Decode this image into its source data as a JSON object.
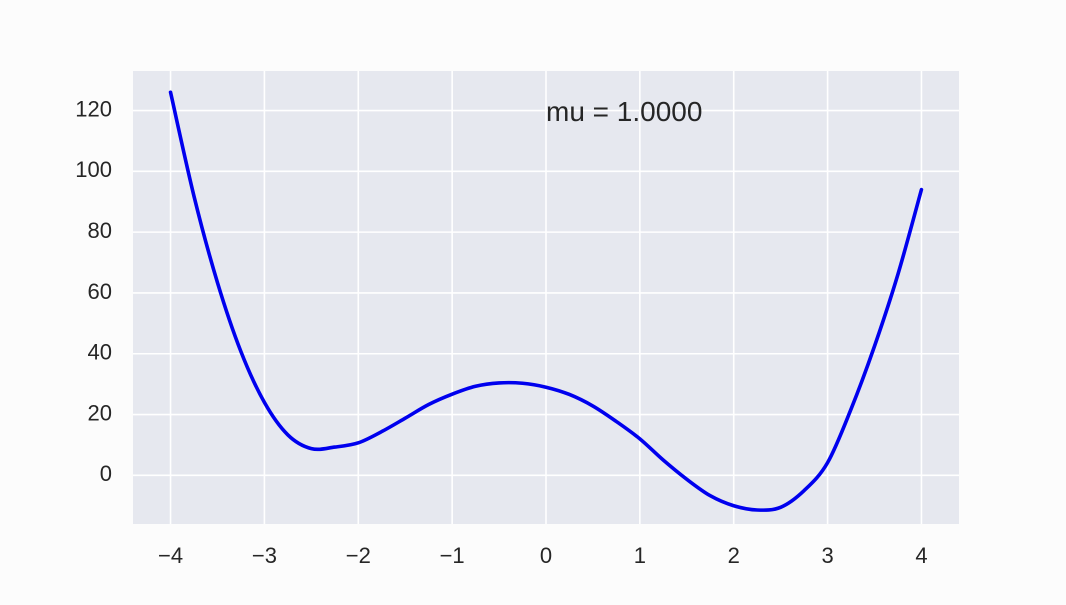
{
  "chart_data": {
    "type": "line",
    "title": "",
    "xlabel": "",
    "ylabel": "",
    "xlim": [
      -4.4,
      4.4
    ],
    "ylim": [
      -16,
      133
    ],
    "xticks": [
      -4,
      -3,
      -2,
      -1,
      0,
      1,
      2,
      3,
      4
    ],
    "xtick_labels": [
      "−4",
      "−3",
      "−2",
      "−1",
      "0",
      "1",
      "2",
      "3",
      "4"
    ],
    "yticks": [
      0,
      20,
      40,
      60,
      80,
      100,
      120
    ],
    "ytick_labels": [
      "0",
      "20",
      "40",
      "60",
      "80",
      "100",
      "120"
    ],
    "grid": true,
    "background_color": "#e6e8ef",
    "grid_color": "#ffffff",
    "series": [
      {
        "color": "#0000ee",
        "x": [
          -4.0,
          -3.75,
          -3.5,
          -3.25,
          -3.0,
          -2.75,
          -2.5,
          -2.25,
          -2.0,
          -1.75,
          -1.5,
          -1.25,
          -1.0,
          -0.75,
          -0.5,
          -0.25,
          0.0,
          0.25,
          0.5,
          0.75,
          1.0,
          1.25,
          1.5,
          1.75,
          2.0,
          2.25,
          2.5,
          2.75,
          3.0,
          3.25,
          3.5,
          3.75,
          4.0
        ],
        "y": [
          126,
          91.8,
          63.4,
          40.7,
          24.0,
          13.3,
          8.8,
          9.3,
          10.7,
          14.4,
          18.8,
          23.3,
          26.7,
          29.3,
          30.4,
          30.3,
          29.0,
          26.6,
          22.8,
          17.7,
          12.0,
          5.0,
          -1.3,
          -6.7,
          -10.0,
          -11.4,
          -10.5,
          -5.0,
          4.2,
          21.8,
          42.5,
          66.2,
          94.0
        ]
      }
    ],
    "annotation": {
      "text": "mu = 1.0000",
      "x": 0,
      "y": 120
    }
  }
}
